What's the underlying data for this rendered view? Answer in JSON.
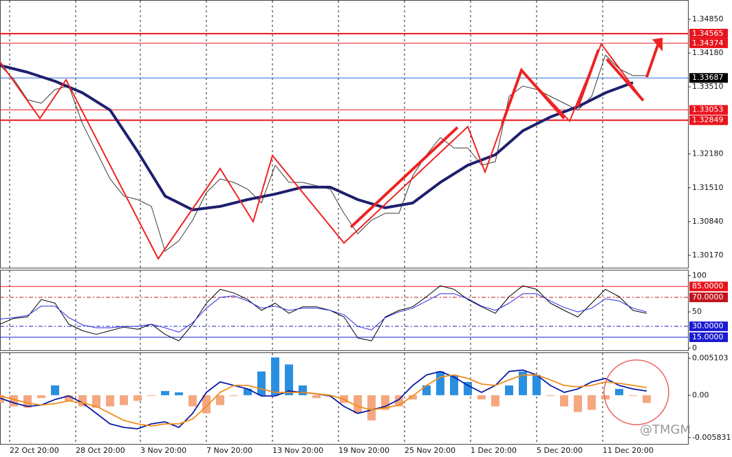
{
  "chart_data": [
    {
      "type": "line",
      "x": [
        0,
        5,
        10,
        15,
        20,
        25,
        30,
        35,
        40,
        45,
        50,
        55,
        60,
        65,
        70,
        75,
        80,
        85,
        90,
        95,
        100,
        105,
        110,
        115,
        120,
        125,
        130,
        135,
        140,
        145,
        150,
        155,
        160,
        165,
        170,
        175,
        180,
        185,
        190,
        195,
        200,
        205,
        210,
        215,
        220,
        225,
        230,
        235
      ],
      "xlim": [
        0,
        250
      ],
      "ylim": [
        1.29911,
        1.35232
      ],
      "yticks": [
        {
          "value": 1.3485,
          "label": "1.34850"
        },
        {
          "value": 1.3418,
          "label": "1.34180"
        },
        {
          "value": 1.3351,
          "label": "1.33510"
        },
        {
          "value": 1.3218,
          "label": "1.32180"
        },
        {
          "value": 1.3151,
          "label": "1.31510"
        },
        {
          "value": 1.3084,
          "label": "1.30840"
        },
        {
          "value": 1.3017,
          "label": "1.30170"
        }
      ],
      "levels": [
        1.34565,
        1.34374,
        1.33053,
        1.32849
      ],
      "level_colors": [
        "#e8141c",
        "#e8141c",
        "#e8141c",
        "#e8141c"
      ],
      "last": 1.33687,
      "last_color": "#2f6fd6",
      "series": [
        {
          "color": "#3a3a3a",
          "values": [
            1.33936,
            1.33663,
            1.33254,
            1.33186,
            1.33459,
            1.33527,
            1.32777,
            1.32231,
            1.31686,
            1.31345,
            1.31276,
            1.3114,
            1.30253,
            1.30458,
            1.30867,
            1.31413,
            1.31686,
            1.31617,
            1.31481,
            1.31208,
            1.31958,
            1.31617,
            1.31617,
            1.31549,
            1.31481,
            1.31004,
            1.30594,
            1.30867,
            1.31004,
            1.31004,
            1.31754,
            1.32163,
            1.32504,
            1.32299,
            1.32299,
            1.31958,
            1.32027,
            1.33322,
            1.33527,
            1.33459,
            1.33322,
            1.33186,
            1.3305,
            1.33322,
            1.34141,
            1.33868,
            1.33732,
            1.33732
          ]
        },
        {
          "color": "#1f1f6e",
          "x": [
            0,
            10,
            20,
            30,
            40,
            50,
            60,
            70,
            80,
            90,
            100,
            110,
            120,
            130,
            140,
            150,
            160,
            170,
            180,
            190,
            200,
            210,
            220,
            230
          ],
          "values": [
            1.33936,
            1.338,
            1.33622,
            1.33391,
            1.3305,
            1.32231,
            1.31345,
            1.31072,
            1.3114,
            1.31276,
            1.31386,
            1.31522,
            1.31522,
            1.31276,
            1.31113,
            1.31208,
            1.31617,
            1.31958,
            1.32163,
            1.3264,
            1.32913,
            1.33118,
            1.33391,
            1.33595
          ]
        }
      ]
    },
    {
      "type": "line",
      "x": [
        0,
        5,
        10,
        15,
        20,
        25,
        30,
        35,
        40,
        45,
        50,
        55,
        60,
        65,
        70,
        75,
        80,
        85,
        90,
        95,
        100,
        105,
        110,
        115,
        120,
        125,
        130,
        135,
        140,
        145,
        150,
        155,
        160,
        165,
        170,
        175,
        180,
        185,
        190,
        195,
        200,
        205,
        210,
        215,
        220,
        225,
        230,
        235
      ],
      "xlim": [
        0,
        250
      ],
      "ylim": [
        -4,
        108
      ],
      "yticks": [
        100,
        50,
        0
      ],
      "levels": [
        {
          "value": 85,
          "label": "85.0000"
        },
        {
          "value": 70,
          "label": "70.0000"
        },
        {
          "value": 30,
          "label": "30.0000"
        },
        {
          "value": 15,
          "label": "15.0000"
        }
      ],
      "level_colors": [
        "#e8141c",
        "#c0141c",
        "#1a1ad0",
        "#1a1ad0"
      ],
      "series": [
        {
          "color": "#000000",
          "values": [
            33,
            41,
            43,
            67,
            62,
            33,
            24,
            19,
            24,
            29,
            26,
            33,
            19,
            10,
            33,
            62,
            81,
            76,
            67,
            52,
            62,
            48,
            57,
            57,
            52,
            43,
            14,
            10,
            43,
            52,
            57,
            71,
            86,
            81,
            67,
            57,
            48,
            71,
            86,
            81,
            62,
            52,
            43,
            62,
            81,
            71,
            52,
            48
          ]
        },
        {
          "color": "#2a2ae0",
          "values": [
            40,
            42,
            45,
            58,
            58,
            42,
            32,
            28,
            28,
            30,
            30,
            33,
            28,
            22,
            35,
            55,
            70,
            72,
            65,
            55,
            58,
            52,
            55,
            55,
            52,
            46,
            30,
            25,
            42,
            50,
            55,
            65,
            75,
            75,
            68,
            58,
            52,
            62,
            75,
            75,
            65,
            56,
            50,
            55,
            68,
            65,
            55,
            50
          ]
        }
      ]
    },
    {
      "type": "macd",
      "x": [
        0,
        5,
        10,
        15,
        20,
        25,
        30,
        35,
        40,
        45,
        50,
        55,
        60,
        65,
        70,
        75,
        80,
        85,
        90,
        95,
        100,
        105,
        110,
        115,
        120,
        125,
        130,
        135,
        140,
        145,
        150,
        155,
        160,
        165,
        170,
        175,
        180,
        185,
        190,
        195,
        200,
        205,
        210,
        215,
        220,
        225,
        230,
        235
      ],
      "xlim": [
        0,
        250
      ],
      "ylim": [
        -0.0068,
        0.0059
      ],
      "yticks": [
        0.005103,
        {
          "value": 0,
          "label": "0.00"
        },
        -0.005831
      ],
      "xticks": [
        {
          "value": 3.5,
          "label": "22 Oct 20:00"
        },
        {
          "value": 27.5,
          "label": "28 Oct 20:00"
        },
        {
          "value": 51,
          "label": "3 Nov 20:00"
        },
        {
          "value": 75,
          "label": "7 Nov 20:00"
        },
        {
          "value": 99,
          "label": "13 Nov 20:00"
        },
        {
          "value": 123,
          "label": "19 Nov 20:00"
        },
        {
          "value": 147,
          "label": "25 Nov 20:00"
        },
        {
          "value": 171,
          "label": "1 Dec 20:00"
        },
        {
          "value": 195,
          "label": "5 Dec 20:00"
        },
        {
          "value": 219,
          "label": "11 Dec 20:00"
        }
      ],
      "histogram": {
        "pos_color": "#2b8fe0",
        "neg_color": "#f5a77f",
        "values": [
          -0.00106,
          -0.00154,
          -0.00173,
          -0.00039,
          0.00135,
          -0.00077,
          -0.00154,
          -0.00173,
          -0.00154,
          -0.00135,
          -0.00077,
          -0.0001,
          0.00058,
          0.00039,
          -0.00154,
          -0.0025,
          -0.00135,
          -0.0001,
          0.00087,
          0.00327,
          0.0052,
          0.00424,
          0.00135,
          -0.00039,
          -0.0001,
          -0.00106,
          -0.0025,
          -0.00347,
          -0.00202,
          -0.00154,
          -0.00058,
          0.00135,
          0.00327,
          0.00279,
          0.00183,
          -0.00058,
          -0.00154,
          0.00135,
          0.00327,
          0.00279,
          -0.0001,
          -0.00154,
          -0.00231,
          -0.00202,
          -0.00058,
          0.00087,
          -0.0001,
          -0.00106
        ]
      },
      "series": [
        {
          "color": "#0a1aa8",
          "values": [
            -0.00039,
            -0.00106,
            -0.00154,
            -0.00135,
            -0.00058,
            -0.0001,
            -0.00106,
            -0.0025,
            -0.00395,
            -0.00443,
            -0.00462,
            -0.00395,
            -0.00366,
            -0.00443,
            -0.0025,
            0.00039,
            0.00183,
            0.00135,
            0.00087,
            -0.0001,
            -0.0001,
            0.00058,
            0.00039,
            0.00019,
            -0.0001,
            -0.00154,
            -0.0025,
            -0.00202,
            -0.00154,
            -0.00058,
            0.00135,
            0.00279,
            0.00327,
            0.0025,
            0.00135,
            0.00039,
            0.00135,
            0.00327,
            0.00347,
            0.00279,
            0.00135,
            0.00039,
            0.00087,
            0.00183,
            0.00231,
            0.00135,
            0.00087,
            0.00058
          ]
        },
        {
          "color": "#f08c1a",
          "values": [
            -0.0001,
            -0.00058,
            -0.00106,
            -0.00135,
            -0.00116,
            -0.00077,
            -0.00106,
            -0.00154,
            -0.0025,
            -0.00347,
            -0.00395,
            -0.00424,
            -0.00395,
            -0.00395,
            -0.00327,
            -0.00154,
            0.00039,
            0.00135,
            0.00135,
            0.00087,
            0.00039,
            0.00039,
            0.00039,
            0.00019,
            0,
            -0.00058,
            -0.00154,
            -0.00202,
            -0.00173,
            -0.00135,
            -0.0001,
            0.00135,
            0.0025,
            0.00279,
            0.00231,
            0.00154,
            0.00135,
            0.00212,
            0.00279,
            0.00279,
            0.00212,
            0.00135,
            0.00116,
            0.00135,
            0.00183,
            0.00164,
            0.00135,
            0.00106
          ]
        }
      ]
    }
  ],
  "watermark": "@TMGM"
}
